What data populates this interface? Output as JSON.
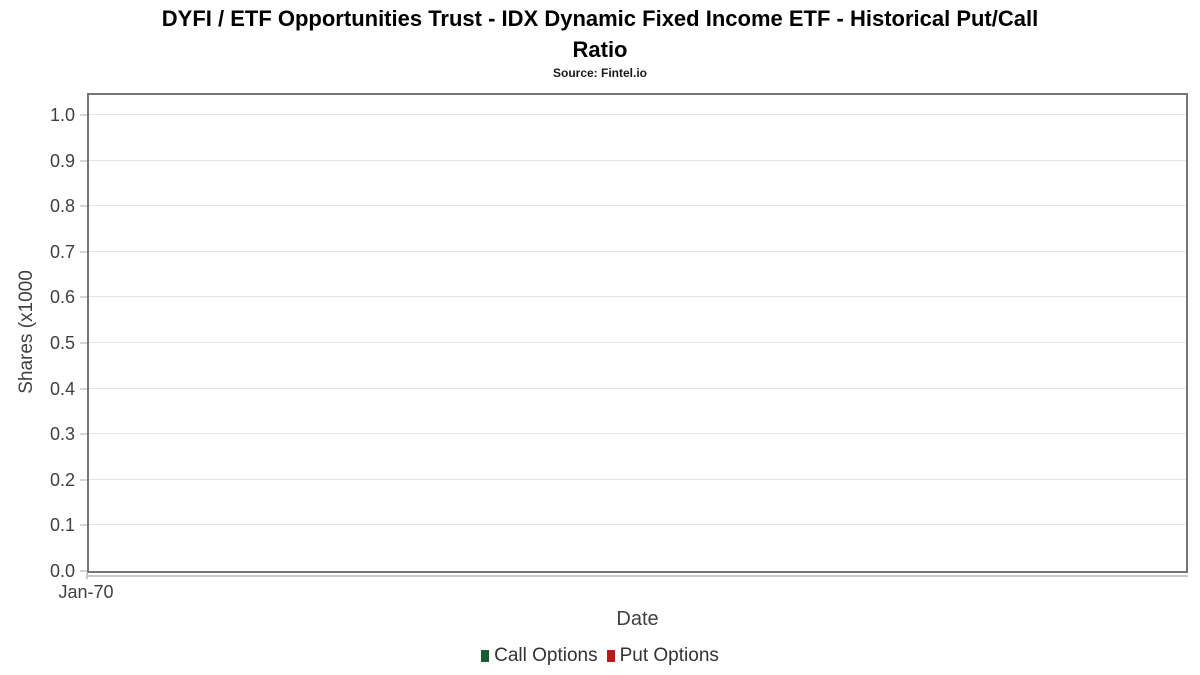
{
  "header": {
    "title_lines": [
      "DYFI / ETF Opportunities Trust - IDX Dynamic Fixed Income ETF - Historical Put/Call",
      "Ratio"
    ],
    "subtitle": "Source: Fintel.io"
  },
  "chart_data": {
    "type": "line",
    "title": "DYFI / ETF Opportunities Trust - IDX Dynamic Fixed Income ETF - Historical Put/Call Ratio",
    "subtitle": "Source: Fintel.io",
    "xlabel": "Date",
    "ylabel": "Shares (x1000",
    "x_ticks": [
      "Jan-70"
    ],
    "y_ticks": [
      "0.0",
      "0.1",
      "0.2",
      "0.3",
      "0.4",
      "0.5",
      "0.6",
      "0.7",
      "0.8",
      "0.9",
      "1.0"
    ],
    "ylim": [
      0,
      1.05
    ],
    "grid": "horizontal-only",
    "legend_position": "bottom-center",
    "series": [
      {
        "name": "Call Options",
        "color": "#195c30",
        "values": []
      },
      {
        "name": "Put Options",
        "color": "#b71c1c",
        "values": []
      }
    ]
  },
  "colors": {
    "plot_border": "#757575",
    "gridline": "#e4e4e4",
    "axis_line": "#c9c9c9",
    "tick_mark": "#d4d4d4",
    "tick_text": "#404040",
    "title_text": "#000000",
    "legend_text": "#333333"
  }
}
